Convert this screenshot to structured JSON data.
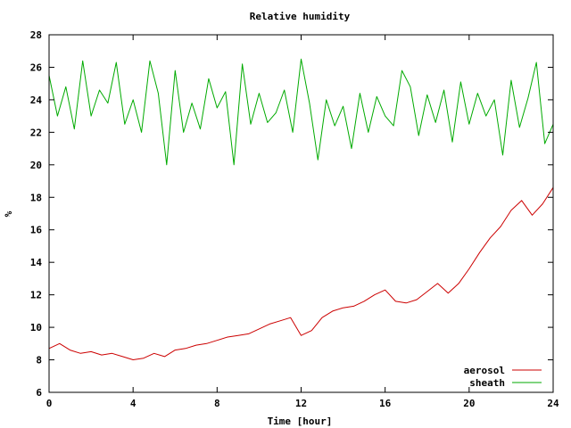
{
  "chart_data": {
    "type": "line",
    "title": "Relative humidity",
    "xlabel": "Time [hour]",
    "ylabel": "%",
    "xlim": [
      0,
      24
    ],
    "ylim": [
      6,
      28
    ],
    "xticks": [
      0,
      4,
      8,
      12,
      16,
      20,
      24
    ],
    "yticks": [
      6,
      8,
      10,
      12,
      14,
      16,
      18,
      20,
      22,
      24,
      26,
      28
    ],
    "grid": false,
    "legend_position": "bottom-right",
    "series": [
      {
        "name": "aerosol",
        "color": "#cc0000",
        "x": [
          0,
          0.5,
          1,
          1.5,
          2,
          2.5,
          3,
          3.5,
          4,
          4.5,
          5,
          5.5,
          6,
          6.5,
          7,
          7.5,
          8,
          8.5,
          9,
          9.5,
          10,
          10.5,
          11,
          11.5,
          12,
          12.5,
          13,
          13.5,
          14,
          14.5,
          15,
          15.5,
          16,
          16.5,
          17,
          17.5,
          18,
          18.5,
          19,
          19.5,
          20,
          20.5,
          21,
          21.5,
          22,
          22.5,
          23,
          23.5,
          24
        ],
        "y": [
          8.7,
          9.0,
          8.6,
          8.4,
          8.5,
          8.3,
          8.4,
          8.2,
          8.0,
          8.1,
          8.4,
          8.2,
          8.6,
          8.7,
          8.9,
          9.0,
          9.2,
          9.4,
          9.5,
          9.6,
          9.9,
          10.2,
          10.4,
          10.6,
          9.5,
          9.8,
          10.6,
          11.0,
          11.2,
          11.3,
          11.6,
          12.0,
          12.3,
          11.6,
          11.5,
          11.7,
          12.2,
          12.7,
          12.1,
          12.7,
          13.6,
          14.6,
          15.5,
          16.2,
          17.2,
          17.8,
          16.9,
          17.6,
          18.6
        ]
      },
      {
        "name": "sheath",
        "color": "#00aa00",
        "x": [
          0,
          0.4,
          0.8,
          1.2,
          1.6,
          2,
          2.4,
          2.8,
          3.2,
          3.6,
          4,
          4.4,
          4.8,
          5.2,
          5.6,
          6,
          6.4,
          6.8,
          7.2,
          7.6,
          8,
          8.4,
          8.8,
          9.2,
          9.6,
          10,
          10.4,
          10.8,
          11.2,
          11.6,
          12,
          12.4,
          12.8,
          13.2,
          13.6,
          14,
          14.4,
          14.8,
          15.2,
          15.6,
          16,
          16.4,
          16.8,
          17.2,
          17.6,
          18,
          18.4,
          18.8,
          19.2,
          19.6,
          20,
          20.4,
          20.8,
          21.2,
          21.6,
          22,
          22.4,
          22.8,
          23.2,
          23.6,
          24
        ],
        "y": [
          25.5,
          23.0,
          24.8,
          22.2,
          26.4,
          23.0,
          24.6,
          23.8,
          26.3,
          22.5,
          24.0,
          22.0,
          26.4,
          24.4,
          20.0,
          25.8,
          22.0,
          23.8,
          22.2,
          25.3,
          23.5,
          24.5,
          20.0,
          26.2,
          22.5,
          24.4,
          22.6,
          23.2,
          24.6,
          22.0,
          26.5,
          23.8,
          20.3,
          24.0,
          22.4,
          23.6,
          21.0,
          24.4,
          22.0,
          24.2,
          23.0,
          22.4,
          25.8,
          24.8,
          21.8,
          24.3,
          22.6,
          24.6,
          21.4,
          25.1,
          22.5,
          24.4,
          23.0,
          24.0,
          20.6,
          25.2,
          22.3,
          24.1,
          26.3,
          21.3,
          22.5
        ]
      }
    ]
  }
}
